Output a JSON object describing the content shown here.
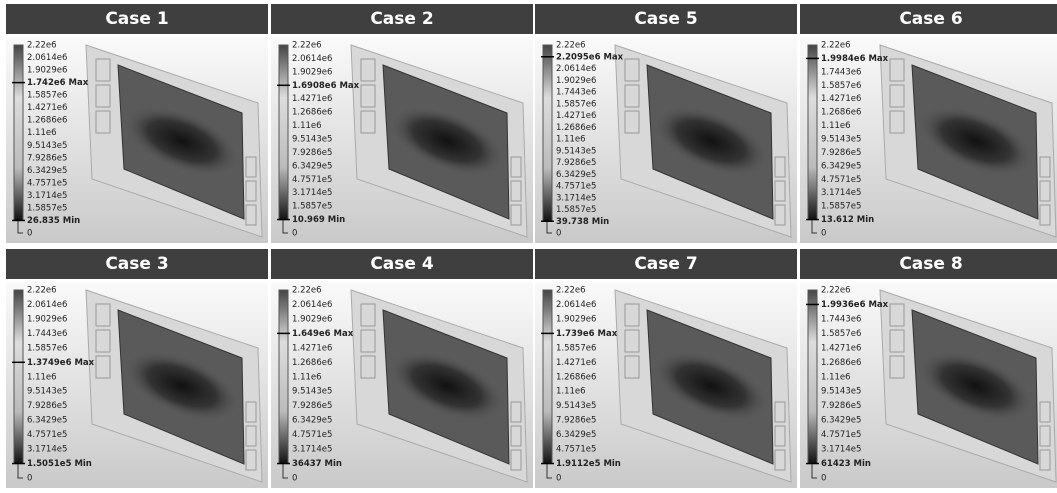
{
  "panels": [
    {
      "title": "Case 1",
      "legend": [
        "2.22e6",
        "2.0614e6",
        "1.9029e6",
        {
          "label": "1.742e6 Max",
          "bold": true
        },
        "1.5857e6",
        "1.4271e6",
        "1.2686e6",
        "1.11e6",
        "9.5143e5",
        "7.9286e5",
        "6.3429e5",
        "4.7571e5",
        "3.1714e5",
        "1.5857e5",
        {
          "label": "26.835 Min",
          "bold": true
        },
        "0"
      ]
    },
    {
      "title": "Case 2",
      "legend": [
        "2.22e6",
        "2.0614e6",
        "1.9029e6",
        {
          "label": "1.6908e6 Max",
          "bold": true
        },
        "1.4271e6",
        "1.2686e6",
        "1.11e6",
        "9.5143e5",
        "7.9286e5",
        "6.3429e5",
        "4.7571e5",
        "3.1714e5",
        "1.5857e5",
        {
          "label": "10.969 Min",
          "bold": true
        },
        "0"
      ]
    },
    {
      "title": "Case 5",
      "legend": [
        "2.22e6",
        {
          "label": "2.2095e6 Max",
          "bold": true
        },
        "2.0614e6",
        "1.9029e6",
        "1.7443e6",
        "1.5857e6",
        "1.4271e6",
        "1.2686e6",
        "1.11e6",
        "9.5143e5",
        "7.9286e5",
        "6.3429e5",
        "4.7571e5",
        "3.1714e5",
        "1.5857e5",
        {
          "label": "39.738 Min",
          "bold": true
        },
        "0"
      ]
    },
    {
      "title": "Case 6",
      "legend": [
        "2.22e6",
        {
          "label": "1.9984e6 Max",
          "bold": true
        },
        "1.7443e6",
        "1.5857e6",
        "1.4271e6",
        "1.2686e6",
        "1.11e6",
        "9.5143e5",
        "7.9286e5",
        "6.3429e5",
        "4.7571e5",
        "3.1714e5",
        "1.5857e5",
        {
          "label": "13.612 Min",
          "bold": true
        },
        "0"
      ]
    },
    {
      "title": "Case 3",
      "legend": [
        "2.22e6",
        "2.0614e6",
        "1.9029e6",
        "1.7443e6",
        "1.5857e6",
        {
          "label": "1.3749e6 Max",
          "bold": true
        },
        "1.11e6",
        "9.5143e5",
        "7.9286e5",
        "6.3429e5",
        "4.7571e5",
        "3.1714e5",
        {
          "label": "1.5051e5 Min",
          "bold": true
        },
        "0"
      ]
    },
    {
      "title": "Case 4",
      "legend": [
        "2.22e6",
        "2.0614e6",
        "1.9029e6",
        {
          "label": "1.649e6 Max",
          "bold": true
        },
        "1.4271e6",
        "1.2686e6",
        "1.11e6",
        "9.5143e5",
        "7.9286e5",
        "6.3429e5",
        "4.7571e5",
        "3.1714e5",
        {
          "label": "36437 Min",
          "bold": true
        },
        "0"
      ]
    },
    {
      "title": "Case 7",
      "legend": [
        "2.22e6",
        "2.0614e6",
        "1.9029e6",
        {
          "label": "1.739e6 Max",
          "bold": true
        },
        "1.5857e6",
        "1.4271e6",
        "1.2686e6",
        "1.11e6",
        "9.5143e5",
        "7.9286e5",
        "6.3429e5",
        "4.7571e5",
        {
          "label": "1.9112e5 Min",
          "bold": true
        },
        "0"
      ]
    },
    {
      "title": "Case 8",
      "legend": [
        "2.22e6",
        {
          "label": "1.9936e6 Max",
          "bold": true
        },
        "1.7443e6",
        "1.5857e6",
        "1.4271e6",
        "1.2686e6",
        "1.11e6",
        "9.5143e5",
        "7.9286e5",
        "6.3429e5",
        "4.7571e5",
        "3.1714e5",
        {
          "label": "61423 Min",
          "bold": true
        },
        "0"
      ]
    }
  ]
}
